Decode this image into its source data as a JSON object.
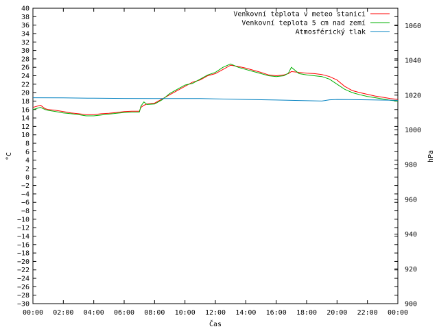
{
  "chart_data": {
    "type": "line",
    "xlabel": "Čas",
    "ylabel_left": "°C",
    "ylabel_right": "hPa",
    "xlim": [
      0,
      24
    ],
    "ylim_left": [
      -30,
      40
    ],
    "ylim_right": [
      900,
      1070
    ],
    "x_ticks": [
      {
        "v": 0,
        "label": "00:00"
      },
      {
        "v": 2,
        "label": "02:00"
      },
      {
        "v": 4,
        "label": "04:00"
      },
      {
        "v": 6,
        "label": "06:00"
      },
      {
        "v": 8,
        "label": "08:00"
      },
      {
        "v": 10,
        "label": "10:00"
      },
      {
        "v": 12,
        "label": "12:00"
      },
      {
        "v": 14,
        "label": "14:00"
      },
      {
        "v": 16,
        "label": "16:00"
      },
      {
        "v": 18,
        "label": "18:00"
      },
      {
        "v": 20,
        "label": "20:00"
      },
      {
        "v": 22,
        "label": "22:00"
      },
      {
        "v": 24,
        "label": "00:00"
      }
    ],
    "y_ticks_left": [
      -30,
      -28,
      -26,
      -24,
      -22,
      -20,
      -18,
      -16,
      -14,
      -12,
      -10,
      -8,
      -6,
      -4,
      -2,
      0,
      2,
      4,
      6,
      8,
      10,
      12,
      14,
      16,
      18,
      20,
      22,
      24,
      26,
      28,
      30,
      32,
      34,
      36,
      38,
      40
    ],
    "y_ticks_right": [
      900,
      920,
      940,
      960,
      980,
      1000,
      1020,
      1040,
      1060
    ],
    "grid": false,
    "legend": "top-right",
    "series": [
      {
        "name": "Venkovní teplota v meteo stanici",
        "axis": "left",
        "color": "#ff0000",
        "x": [
          0,
          0.3,
          0.5,
          0.8,
          1,
          1.5,
          2,
          2.5,
          3,
          3.5,
          4,
          4.5,
          5,
          5.5,
          6,
          6.5,
          7,
          7.1,
          7.3,
          7.5,
          8,
          8.5,
          9,
          9.5,
          10,
          10.5,
          11,
          11.5,
          12,
          12.5,
          13,
          13.5,
          14,
          14.5,
          15,
          15.5,
          16,
          16.5,
          16.8,
          17,
          17.5,
          18,
          18.5,
          19,
          19.5,
          20,
          20.5,
          21,
          21.5,
          22,
          22.5,
          23,
          23.5,
          24
        ],
        "y": [
          16.5,
          16.8,
          17,
          16.2,
          16,
          15.8,
          15.5,
          15.2,
          15,
          14.8,
          14.8,
          15,
          15.1,
          15.3,
          15.5,
          15.6,
          15.6,
          16.5,
          17,
          17.3,
          17.5,
          18.5,
          19.5,
          20.5,
          21.5,
          22.5,
          23,
          24,
          24.5,
          25.5,
          26.5,
          26.2,
          25.8,
          25.3,
          24.8,
          24.2,
          24,
          24.2,
          24.5,
          25,
          24.8,
          24.6,
          24.5,
          24.3,
          23.8,
          23,
          21.5,
          20.5,
          20,
          19.6,
          19.2,
          18.9,
          18.6,
          18.4
        ]
      },
      {
        "name": "Venkovní teplota 5 cm nad zemí",
        "axis": "left",
        "color": "#00b000",
        "x": [
          0,
          0.3,
          0.5,
          0.8,
          1,
          1.5,
          2,
          2.5,
          3,
          3.5,
          4,
          4.5,
          5,
          5.5,
          6,
          6.5,
          7,
          7.1,
          7.3,
          7.5,
          8,
          8.5,
          9,
          9.5,
          10,
          10.5,
          11,
          11.5,
          12,
          12.5,
          13,
          13.5,
          14,
          14.5,
          15,
          15.5,
          16,
          16.5,
          16.8,
          17,
          17.5,
          18,
          18.5,
          19,
          19.5,
          20,
          20.5,
          21,
          21.5,
          22,
          22.5,
          23,
          23.5,
          24
        ],
        "y": [
          16,
          16.3,
          16.5,
          16,
          15.8,
          15.5,
          15.2,
          15,
          14.8,
          14.5,
          14.5,
          14.7,
          14.9,
          15.1,
          15.3,
          15.4,
          15.4,
          16.8,
          17.8,
          17.2,
          17.3,
          18.3,
          19.8,
          20.8,
          21.8,
          22.2,
          23.2,
          24.2,
          24.8,
          26,
          26.8,
          26,
          25.5,
          25,
          24.5,
          24,
          23.8,
          24,
          24.6,
          26,
          24.5,
          24.2,
          24,
          23.8,
          23.2,
          22,
          20.8,
          20,
          19.5,
          19.1,
          18.8,
          18.5,
          18.2,
          18
        ]
      },
      {
        "name": "Atmosférický tlak",
        "axis": "right",
        "color": "#0080c0",
        "x": [
          0,
          2,
          4,
          6,
          8,
          10,
          11,
          12,
          14,
          16,
          18,
          19,
          19.5,
          20,
          22,
          24
        ],
        "y": [
          1018.5,
          1018.4,
          1018.2,
          1018.1,
          1018.0,
          1018.0,
          1018.0,
          1017.8,
          1017.5,
          1017.2,
          1016.8,
          1016.6,
          1017.3,
          1017.5,
          1017.3,
          1017.0
        ]
      }
    ]
  }
}
